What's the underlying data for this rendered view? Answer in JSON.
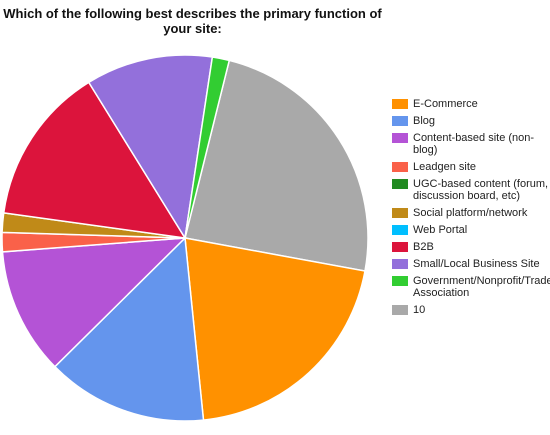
{
  "chart_data": {
    "type": "pie",
    "title": "Which of the following best describes the primary function of your site:",
    "legend_position": "right",
    "categories": [
      "E-Commerce",
      "Blog",
      "Content-based site (non-blog)",
      "Leadgen site",
      "UGC-based content (forum, discussion board, etc)",
      "Social platform/network",
      "Web Portal",
      "B2B",
      "Small/Local Business Site",
      "Government/Nonprofit/Trade Association",
      "10"
    ],
    "values": [
      20.5,
      14.2,
      11.2,
      1.7,
      0.0,
      1.7,
      0.0,
      14.0,
      11.2,
      1.5,
      24.0
    ],
    "colors": [
      "#ff9100",
      "#6495ed",
      "#b453d6",
      "#fa6149",
      "#228b22",
      "#c08a18",
      "#00bfff",
      "#dc143c",
      "#9370db",
      "#32cd32",
      "#a9a9a9"
    ]
  }
}
